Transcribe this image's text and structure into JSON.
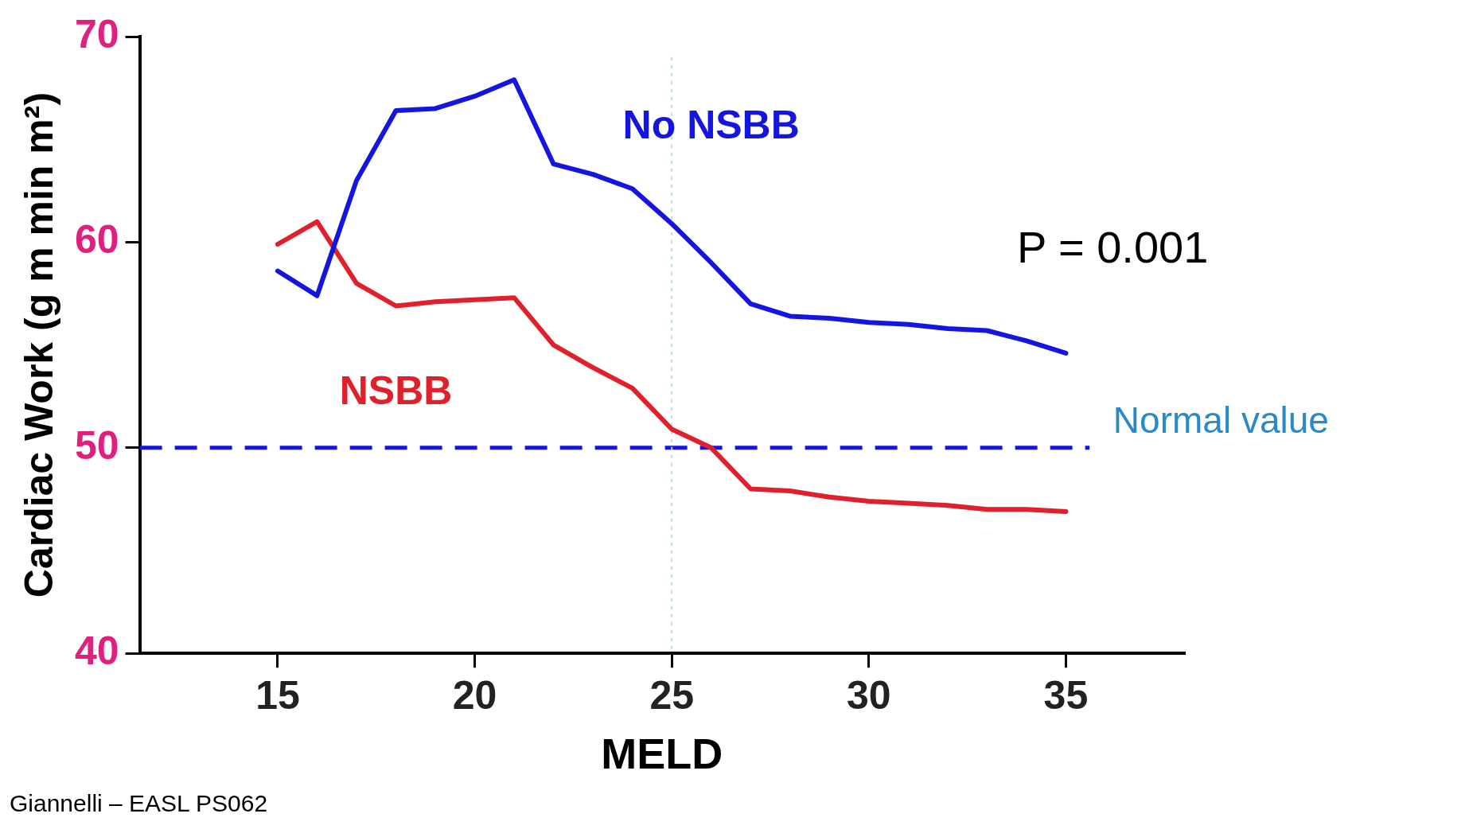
{
  "chart_data": {
    "type": "line",
    "xlabel": "MELD",
    "ylabel": "Cardiac Work (g m min m²)",
    "x": [
      15,
      16,
      17,
      18,
      19,
      20,
      21,
      22,
      23,
      24,
      25,
      26,
      27,
      28,
      29,
      30,
      31,
      32,
      33,
      34,
      35
    ],
    "series": [
      {
        "name": "No NSBB",
        "color": "#1515e0",
        "values": [
          58.6,
          57.4,
          63.0,
          66.4,
          66.5,
          67.1,
          67.9,
          63.8,
          63.3,
          62.6,
          60.9,
          59.0,
          57.0,
          56.4,
          56.3,
          56.1,
          56.0,
          55.8,
          55.7,
          55.2,
          54.6
        ]
      },
      {
        "name": "NSBB",
        "color": "#e0202a",
        "values": [
          59.9,
          61.0,
          58.0,
          56.9,
          57.1,
          57.2,
          57.3,
          55.0,
          53.9,
          52.9,
          50.9,
          50.0,
          48.0,
          47.9,
          47.6,
          47.4,
          47.3,
          47.2,
          47.0,
          47.0,
          46.9
        ]
      }
    ],
    "xlim": [
      11.5,
      38
    ],
    "xticks": [
      15,
      20,
      25,
      30,
      35
    ],
    "ylim": [
      40,
      70
    ],
    "yticks": [
      40,
      50,
      60,
      70
    ],
    "ref_lines": [
      {
        "axis": "y",
        "value": 50,
        "label": "Normal value",
        "color": "#1515e0",
        "line_style": "dashed"
      },
      {
        "axis": "x",
        "value": 25,
        "label": null,
        "color": "#b8dcdc",
        "line_style": "dotted"
      }
    ],
    "annotations": [
      "P = 0.001",
      "Giannelli – EASL PS062"
    ],
    "grid": false,
    "legend": false,
    "marker": "none",
    "line_style": "solid"
  }
}
